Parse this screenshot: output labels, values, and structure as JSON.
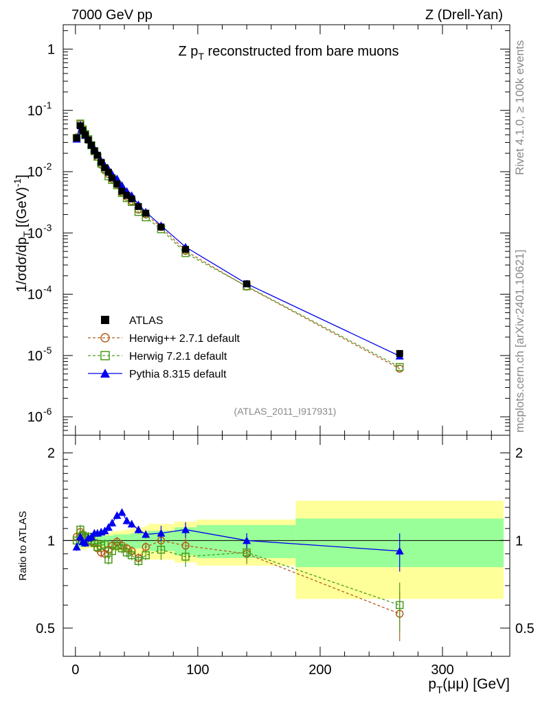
{
  "header": {
    "left": "7000 GeV pp",
    "right": "Z (Drell-Yan)"
  },
  "side_labels": {
    "rivet": "Rivet 4.1.0, ≥ 100k events",
    "mcplots": "mcplots.cern.ch [arXiv:2401.10621]"
  },
  "chart_data": {
    "type": "scatter",
    "title": "Z p_T reconstructed from bare muons",
    "analysis_id": "(ATLAS_2011_I917931)",
    "xlabel": "p_T(μμ) [GeV]",
    "ylabel": "1/σdσ/dp_T [(GeV)^-1]",
    "ratio_ylabel": "Ratio to ATLAS",
    "xlim": [
      -10,
      355
    ],
    "ylim": [
      5e-07,
      2.5
    ],
    "ratio_ylim": [
      0.4,
      2.3
    ],
    "x_ticks": [
      0,
      100,
      200,
      300
    ],
    "y_ticks": [
      1,
      0.1,
      0.01,
      0.001,
      0.0001,
      1e-05,
      1e-06
    ],
    "y_tick_labels": [
      {
        "mant": "1",
        "exp": ""
      },
      {
        "mant": "10",
        "exp": "-1"
      },
      {
        "mant": "10",
        "exp": "-2"
      },
      {
        "mant": "10",
        "exp": "-3"
      },
      {
        "mant": "10",
        "exp": "-4"
      },
      {
        "mant": "10",
        "exp": "-5"
      },
      {
        "mant": "10",
        "exp": "-6"
      }
    ],
    "ratio_ticks": [
      0.5,
      1,
      2
    ],
    "x_tick_labels": [
      "0",
      "100",
      "200",
      "300"
    ],
    "ratio_tick_labels": [
      "0.5",
      "1",
      "2"
    ],
    "x": [
      1,
      4,
      6,
      8,
      10.5,
      13,
      15.5,
      18,
      21,
      24,
      27,
      30,
      34,
      38,
      42,
      46,
      51.5,
      57.5,
      70,
      90,
      140,
      265
    ],
    "band_edges": [
      0,
      2,
      5,
      7,
      9,
      12,
      14,
      17,
      19,
      23,
      25,
      29,
      31,
      37,
      39,
      45,
      47,
      56,
      59,
      81,
      99,
      180,
      350
    ],
    "band_green": [
      0.05,
      0.05,
      0.05,
      0.05,
      0.04,
      0.04,
      0.04,
      0.04,
      0.04,
      0.04,
      0.04,
      0.04,
      0.05,
      0.05,
      0.05,
      0.06,
      0.06,
      0.06,
      0.08,
      0.11,
      0.13,
      0.19,
      0.24
    ],
    "band_yellow": [
      0.07,
      0.07,
      0.07,
      0.07,
      0.06,
      0.06,
      0.06,
      0.06,
      0.06,
      0.06,
      0.06,
      0.07,
      0.08,
      0.08,
      0.09,
      0.1,
      0.11,
      0.12,
      0.14,
      0.16,
      0.18,
      0.37,
      0.5
    ],
    "series": [
      {
        "name": "ATLAS",
        "color": "#000000",
        "marker": "filled-square",
        "line": "none",
        "values": [
          0.0355,
          0.056,
          0.047,
          0.04,
          0.033,
          0.027,
          0.022,
          0.0185,
          0.0142,
          0.0116,
          0.0098,
          0.0079,
          0.0063,
          0.0048,
          0.0041,
          0.0036,
          0.0027,
          0.0021,
          0.00125,
          0.00054,
          0.000148,
          1.08e-05
        ],
        "ratio": [
          1,
          1,
          1,
          1,
          1,
          1,
          1,
          1,
          1,
          1,
          1,
          1,
          1,
          1,
          1,
          1,
          1,
          1,
          1,
          1,
          1,
          1
        ]
      },
      {
        "name": "Herwig++ 2.7.1 default",
        "color": "#b35a1a",
        "marker": "open-circle",
        "line": "dashed",
        "values": [
          0.0365,
          0.06,
          0.049,
          0.041,
          0.033,
          0.027,
          0.0215,
          0.0175,
          0.013,
          0.0105,
          0.0091,
          0.0076,
          0.0062,
          0.0046,
          0.0039,
          0.0033,
          0.0024,
          0.002,
          0.00125,
          0.00051,
          0.000133,
          6.1e-06
        ],
        "ratio": [
          1.03,
          1.07,
          1.05,
          1.03,
          1.0,
          0.99,
          0.98,
          0.94,
          0.91,
          0.9,
          0.93,
          0.96,
          0.99,
          0.96,
          0.94,
          0.92,
          0.87,
          0.95,
          1.0,
          0.96,
          0.9,
          0.56
        ]
      },
      {
        "name": "Herwig 7.2.1 default",
        "color": "#4a9a1a",
        "marker": "open-square",
        "line": "dashed",
        "values": [
          0.0355,
          0.061,
          0.049,
          0.041,
          0.034,
          0.027,
          0.0215,
          0.0175,
          0.0136,
          0.0112,
          0.0084,
          0.0073,
          0.006,
          0.0045,
          0.0037,
          0.0032,
          0.0022,
          0.0018,
          0.00115,
          0.00047,
          0.000135,
          6.5e-06
        ],
        "ratio": [
          1.0,
          1.09,
          1.04,
          1.02,
          1.03,
          1.0,
          0.98,
          0.95,
          0.96,
          0.97,
          0.86,
          0.92,
          0.96,
          0.94,
          0.91,
          0.89,
          0.85,
          0.89,
          0.93,
          0.88,
          0.91,
          0.6
        ]
      },
      {
        "name": "Pythia 8.315 default",
        "color": "#0000ee",
        "marker": "filled-triangle",
        "line": "solid",
        "values": [
          0.034,
          0.058,
          0.046,
          0.039,
          0.034,
          0.028,
          0.0235,
          0.0195,
          0.0151,
          0.0126,
          0.0109,
          0.0091,
          0.0077,
          0.006,
          0.0048,
          0.0041,
          0.0029,
          0.0022,
          0.00132,
          0.00059,
          0.000148,
          9.8e-06
        ],
        "ratio": [
          0.95,
          1.03,
          0.99,
          0.98,
          1.02,
          1.03,
          1.06,
          1.06,
          1.07,
          1.08,
          1.11,
          1.15,
          1.22,
          1.25,
          1.17,
          1.14,
          1.09,
          1.05,
          1.06,
          1.09,
          1.0,
          0.92
        ]
      }
    ]
  }
}
